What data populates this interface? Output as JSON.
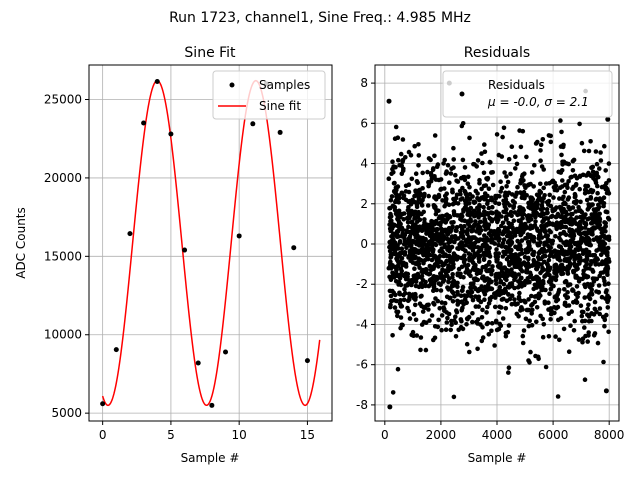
{
  "suptitle": "Run 1723, channel1, Sine Freq.: 4.985 MHz",
  "chart_data": [
    {
      "type": "line",
      "title": "Sine Fit",
      "xlabel": "Sample #",
      "ylabel": "ADC Counts",
      "xlim": [
        -1.0,
        16.8
      ],
      "ylim": [
        4500,
        27200
      ],
      "xticks": [
        0,
        5,
        10,
        15
      ],
      "yticks": [
        5000,
        10000,
        15000,
        20000,
        25000
      ],
      "grid": true,
      "legend_position": "top-right",
      "fit_period": 7.22,
      "series": [
        {
          "name": "Samples",
          "style": "scatter",
          "color": "#000000",
          "x": [
            0,
            1,
            2,
            3,
            4,
            5,
            6,
            7,
            8,
            9,
            10,
            11,
            12,
            13,
            14,
            15,
            16
          ],
          "y": [
            5600,
            9050,
            16450,
            23500,
            26150,
            22800,
            15400,
            8200,
            5500,
            8900,
            16300,
            23450,
            26000,
            22900,
            15550,
            8350,
            null
          ]
        },
        {
          "name": "Sine fit",
          "style": "line",
          "color": "#ff0000",
          "x_range": [
            0,
            15.9
          ],
          "amplitude": 10350,
          "offset": 15850,
          "period": 7.22,
          "phase_peak_x": 4.0
        }
      ]
    },
    {
      "type": "scatter",
      "title": "Residuals",
      "xlabel": "Sample #",
      "ylabel": "",
      "xlim": [
        -350,
        8350
      ],
      "ylim": [
        -8.8,
        8.9
      ],
      "xticks": [
        0,
        2000,
        4000,
        6000,
        8000
      ],
      "yticks": [
        -8,
        -6,
        -4,
        -2,
        0,
        2,
        4,
        6,
        8
      ],
      "grid": true,
      "legend_position": "top-right",
      "series": [
        {
          "name": "Residuals",
          "label_line2": "μ = -0.0, σ = 2.1",
          "color": "#000000",
          "n_points": 8000,
          "mean": 0.0,
          "std": 2.1,
          "notable_points": [
            {
              "x": 150,
              "y": 7.1
            },
            {
              "x": 180,
              "y": -8.1
            },
            {
              "x": 2300,
              "y": 8.0
            },
            {
              "x": 7900,
              "y": -7.3
            },
            {
              "x": 7950,
              "y": 6.2
            }
          ]
        }
      ]
    }
  ]
}
